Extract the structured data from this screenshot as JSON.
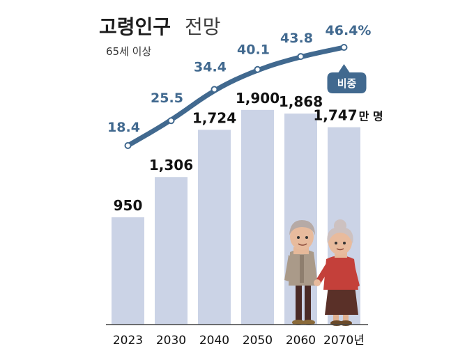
{
  "chart_data": {
    "type": "bar",
    "title": "고령인구",
    "title_suffix": "전망",
    "subtitle": "65세 이상",
    "categories": [
      "2023",
      "2030",
      "2040",
      "2050",
      "2060",
      "2070년"
    ],
    "bar_unit": "만 명",
    "ylim": [
      0,
      2000
    ],
    "series": [
      {
        "type": "bar",
        "values": [
          950,
          1306,
          1724,
          1900,
          1868,
          1747
        ],
        "labels": [
          "950",
          "1,306",
          "1,724",
          "1,900",
          "1,868",
          "1,747"
        ],
        "color": "#cbd3e6"
      },
      {
        "type": "line",
        "name": "비중",
        "values": [
          18.4,
          25.5,
          34.4,
          40.1,
          43.8,
          46.4
        ],
        "labels": [
          "18.4",
          "25.5",
          "34.4",
          "40.1",
          "43.8",
          "46.4%"
        ],
        "color": "#41698f"
      }
    ],
    "grid": false,
    "legend": "line-end"
  }
}
